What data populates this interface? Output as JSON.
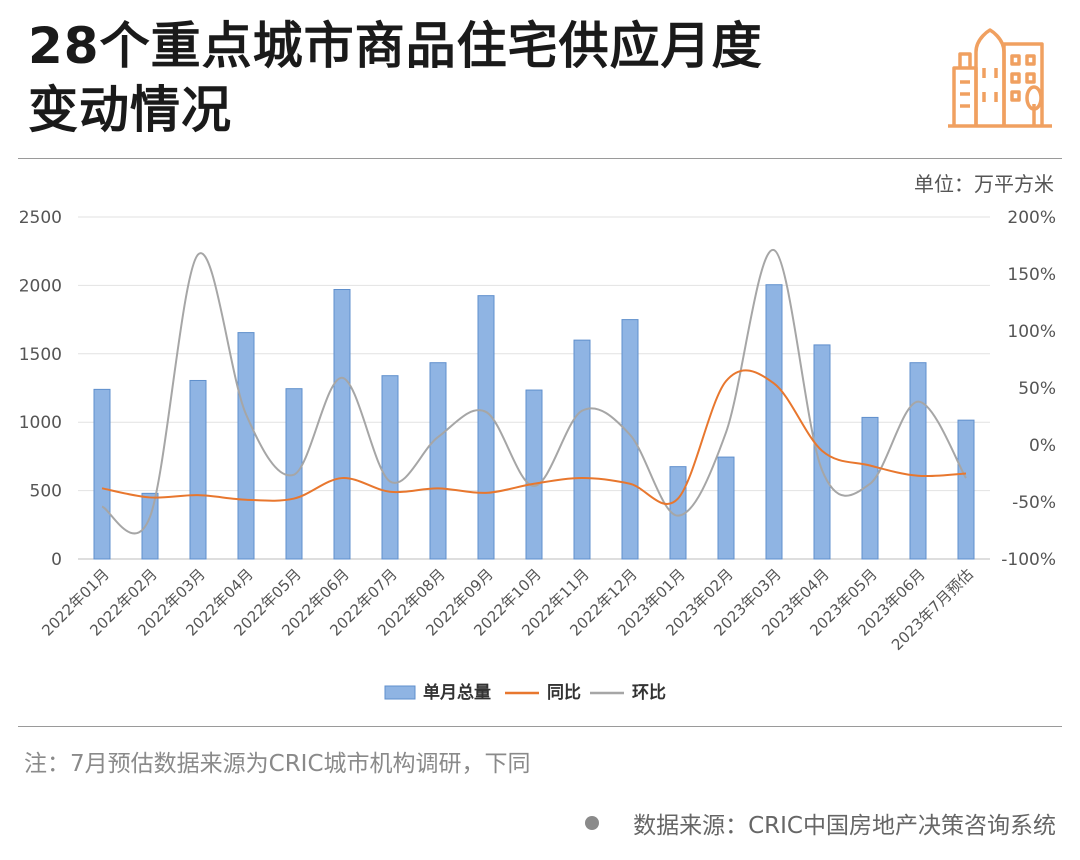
{
  "header": {
    "title_line1": "28个重点城市商品住宅供应月度",
    "title_line2": "变动情况",
    "unit": "单位：万平方米"
  },
  "footer": {
    "note": "注：7月预估数据来源为CRIC城市机构调研，下同",
    "source": "数据来源：CRIC中国房地产决策咨询系统"
  },
  "colors": {
    "bar": "#8fb4e3",
    "bar_edge": "#5f8fcc",
    "yoy_line": "#e8772e",
    "mom_line": "#a6a6a6",
    "logo": "#f0a060"
  },
  "chart_data": {
    "type": "bar",
    "categories": [
      "2022年01月",
      "2022年02月",
      "2022年03月",
      "2022年04月",
      "2022年05月",
      "2022年06月",
      "2022年07月",
      "2022年08月",
      "2022年09月",
      "2022年10月",
      "2022年11月",
      "2022年12月",
      "2023年01月",
      "2023年02月",
      "2023年03月",
      "2023年04月",
      "2023年05月",
      "2023年06月",
      "2023年7月预估"
    ],
    "series": [
      {
        "name": "单月总量",
        "type": "bar",
        "axis": "left",
        "values": [
          1240,
          480,
          1305,
          1655,
          1245,
          1970,
          1340,
          1435,
          1925,
          1235,
          1600,
          1750,
          675,
          745,
          2005,
          1565,
          1035,
          1435,
          1015
        ]
      },
      {
        "name": "同比",
        "type": "line",
        "axis": "right",
        "values": [
          -38,
          -46,
          -44,
          -48,
          -47,
          -29,
          -41,
          -38,
          -42,
          -34,
          -29,
          -34,
          -47,
          56,
          54,
          -5,
          -18,
          -27,
          -25
        ]
      },
      {
        "name": "环比",
        "type": "line",
        "axis": "right",
        "values": [
          -54,
          -63,
          167,
          27,
          -26,
          59,
          -32,
          7,
          29,
          -36,
          30,
          9,
          -62,
          11,
          171,
          -22,
          -34,
          38,
          -29
        ]
      }
    ],
    "y_left": {
      "min": 0,
      "max": 2500,
      "ticks": [
        0,
        500,
        1000,
        1500,
        2000,
        2500
      ]
    },
    "y_right": {
      "min": -100,
      "max": 200,
      "ticks": [
        "-100%",
        "-50%",
        "0%",
        "50%",
        "100%",
        "150%",
        "200%"
      ]
    },
    "grid": true,
    "legend_position": "bottom"
  }
}
